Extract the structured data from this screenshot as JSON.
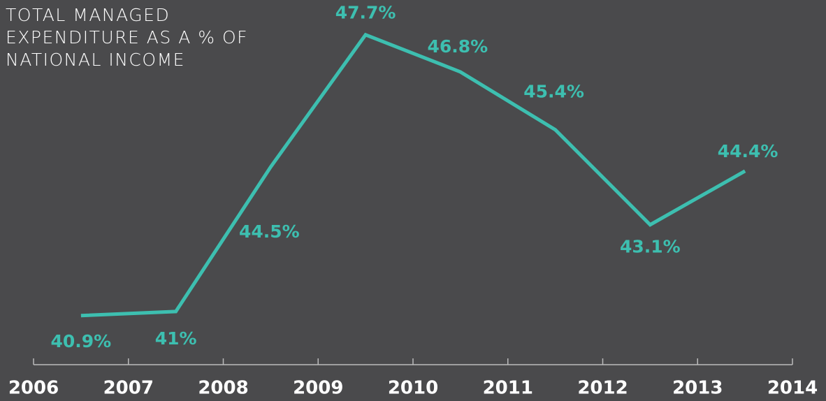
{
  "chart_data": {
    "type": "line",
    "title": "TOTAL MANAGED EXPENDITURE AS A % OF NATIONAL INCOME",
    "x": [
      2006.5,
      2007.5,
      2008.5,
      2009.5,
      2010.5,
      2011.5,
      2012.5,
      2013.5
    ],
    "series": [
      {
        "name": "Total managed expenditure",
        "color": "#3dbfb0",
        "values": [
          40.9,
          41,
          44.5,
          47.7,
          46.8,
          45.4,
          43.1,
          44.4
        ],
        "value_labels": [
          "40.9%",
          "41%",
          "44.5%",
          "47.7%",
          "46.8%",
          "45.4%",
          "43.1%",
          "44.4%"
        ]
      }
    ],
    "xlim": [
      2006,
      2014
    ],
    "xticks": [
      2006,
      2007,
      2008,
      2009,
      2010,
      2011,
      2012,
      2013,
      2014
    ],
    "ylim": [
      40,
      48
    ]
  }
}
